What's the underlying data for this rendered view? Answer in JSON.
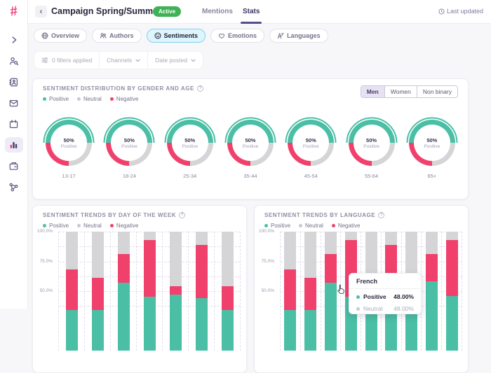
{
  "colors": {
    "positive": "#4BBFA5",
    "neutral": "#D5D5D7",
    "negative": "#F0416D",
    "brand": "#F0437C",
    "badge_green": "#3EB254",
    "accent_purple": "#554B8E",
    "grid": "#E0DDEE",
    "icon_purple": "#5E5880"
  },
  "sidebar": {
    "logo_glyph": "#",
    "icons": [
      "chevron-right",
      "user-search",
      "contacts-book",
      "mail",
      "calendar",
      "bar-chart",
      "wallet",
      "network"
    ],
    "active_icon": "bar-chart"
  },
  "header": {
    "back_glyph": "‹",
    "title": "Campaign Spring/Summer",
    "status_badge": "Active",
    "tabs": [
      {
        "label": "Mentions",
        "active": false
      },
      {
        "label": "Stats",
        "active": true
      }
    ],
    "last_updated": "Last updated"
  },
  "subnav": {
    "pills": [
      {
        "label": "Overview",
        "icon": "globe-icon",
        "active": false
      },
      {
        "label": "Authors",
        "icon": "users-icon",
        "active": false
      },
      {
        "label": "Sentiments",
        "icon": "smiley-icon",
        "active": true
      },
      {
        "label": "Emotions",
        "icon": "heart-icon",
        "active": false
      },
      {
        "label": "Languages",
        "icon": "translate-icon",
        "active": false
      }
    ]
  },
  "filters": {
    "icon": "sliders-icon",
    "applied_label": "0 filters applied",
    "channels_label": "Channels",
    "date_posted_label": "Date posted"
  },
  "legend": [
    {
      "label": "Positive",
      "key": "positive"
    },
    {
      "label": "Neutral",
      "key": "neutral"
    },
    {
      "label": "Negative",
      "key": "negative"
    }
  ],
  "distribution": {
    "gender_tabs": [
      {
        "label": "Men",
        "active": true
      },
      {
        "label": "Women",
        "active": false
      },
      {
        "label": "Non binary",
        "active": false
      }
    ]
  },
  "chart_data": [
    {
      "id": "sentiment-by-gender-age",
      "type": "pie",
      "title": "SENTIMENT DISTRIBUTION BY GENDER AND AGE",
      "categories": [
        "13-17",
        "18-24",
        "25-34",
        "35-44",
        "45-54",
        "55-64",
        "65+"
      ],
      "series": [
        {
          "name": "Positive",
          "values": [
            50,
            50,
            50,
            50,
            50,
            50,
            50
          ]
        },
        {
          "name": "Neutral",
          "values": [
            25,
            25,
            25,
            25,
            25,
            25,
            25
          ]
        },
        {
          "name": "Negative",
          "values": [
            25,
            25,
            25,
            25,
            25,
            25,
            25
          ]
        }
      ],
      "center_label": "50%",
      "center_sublabel": "Positive"
    },
    {
      "id": "sentiment-by-day-of-week",
      "type": "bar",
      "stacked": true,
      "title": "SENTIMENT TRENDS BY DAY OF THE WEEK",
      "x_tick_labels_visible": false,
      "yticks": [
        {
          "label": "100.0%",
          "value": 100
        },
        {
          "label": "75.0%",
          "value": 75
        },
        {
          "label": "50.0%",
          "value": 50
        }
      ],
      "gridlines": [
        100,
        87.5,
        75,
        62.5,
        50,
        37.5
      ],
      "series": [
        {
          "name": "Positive",
          "values": [
            34,
            34,
            57,
            45,
            47,
            44,
            34
          ]
        },
        {
          "name": "Negative",
          "values": [
            34,
            27,
            24,
            48,
            7,
            45,
            20
          ]
        },
        {
          "name": "Neutral",
          "values": [
            32,
            39,
            19,
            7,
            46,
            11,
            46
          ]
        }
      ]
    },
    {
      "id": "sentiment-by-language",
      "type": "bar",
      "stacked": true,
      "title": "SENTIMENT TRENDS BY LANGUAGE",
      "x_tick_labels_visible": false,
      "yticks": [
        {
          "label": "100.0%",
          "value": 100
        },
        {
          "label": "75.0%",
          "value": 75
        },
        {
          "label": "50.0%",
          "value": 50
        }
      ],
      "gridlines": [
        100,
        87.5,
        75,
        62.5,
        50,
        37.5
      ],
      "series": [
        {
          "name": "Positive",
          "values": [
            34,
            34,
            57,
            45,
            34,
            34,
            34,
            58,
            46
          ]
        },
        {
          "name": "Negative",
          "values": [
            34,
            27,
            24,
            48,
            21,
            55,
            21,
            23,
            47
          ]
        },
        {
          "name": "Neutral",
          "values": [
            32,
            39,
            19,
            7,
            45,
            11,
            45,
            19,
            7
          ]
        }
      ],
      "tooltip": {
        "title": "French",
        "rows": [
          {
            "label": "Positive",
            "value": "48.00%",
            "key": "positive"
          },
          {
            "label": "Neutral",
            "value": "48.00%",
            "key": "neutral"
          }
        ]
      }
    }
  ]
}
